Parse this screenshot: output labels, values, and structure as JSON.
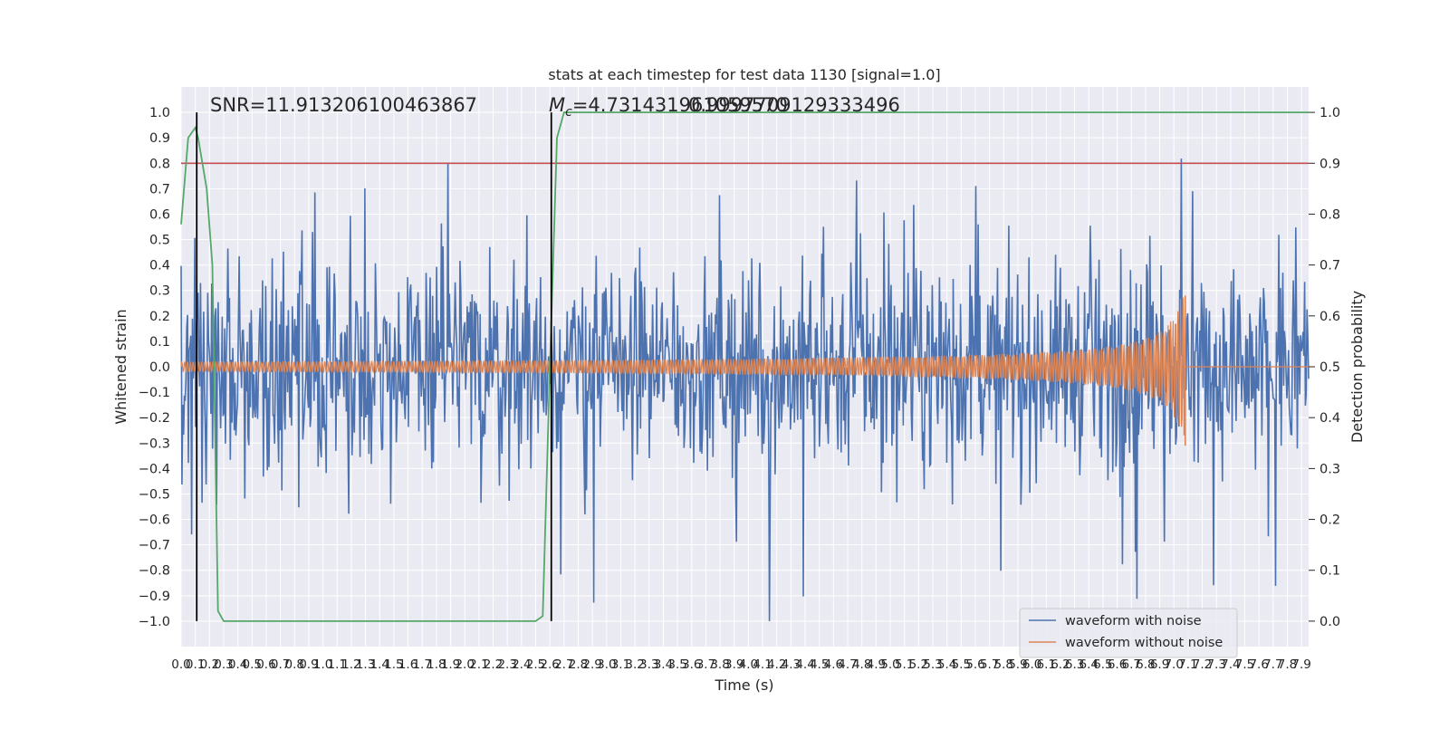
{
  "chart_data": {
    "type": "line",
    "title": "stats at each timestep for test data 1130 [signal=1.0]",
    "xlabel": "Time (s)",
    "ylabel_left": "Whitened strain",
    "ylabel_right": "Detection probability",
    "xlim": [
      0.0,
      7.95
    ],
    "ylim_left": [
      -1.1,
      1.1
    ],
    "ylim_right": [
      -0.05,
      1.05
    ],
    "x_ticks": [
      0.0,
      0.1,
      0.2,
      0.3,
      0.4,
      0.5,
      0.6,
      0.7,
      0.8,
      0.9,
      1.0,
      1.1,
      1.2,
      1.3,
      1.4,
      1.5,
      1.6,
      1.7,
      1.8,
      1.9,
      2.0,
      2.1,
      2.2,
      2.3,
      2.4,
      2.5,
      2.6,
      2.7,
      2.8,
      2.9,
      3.0,
      3.1,
      3.2,
      3.3,
      3.4,
      3.5,
      3.6,
      3.7,
      3.8,
      3.9,
      4.0,
      4.1,
      4.2,
      4.3,
      4.4,
      4.5,
      4.6,
      4.7,
      4.8,
      4.9,
      5.0,
      5.1,
      5.2,
      5.3,
      5.4,
      5.5,
      5.6,
      5.7,
      5.8,
      5.9,
      6.0,
      6.1,
      6.2,
      6.3,
      6.4,
      6.5,
      6.6,
      6.7,
      6.8,
      6.9,
      7.0,
      7.1,
      7.2,
      7.3,
      7.4,
      7.5,
      7.6,
      7.7,
      7.8,
      7.9
    ],
    "y_ticks_left": [
      -1.0,
      -0.9,
      -0.8,
      -0.7,
      -0.6,
      -0.5,
      -0.4,
      -0.3,
      -0.2,
      -0.1,
      0.0,
      0.1,
      0.2,
      0.3,
      0.4,
      0.5,
      0.6,
      0.7,
      0.8,
      0.9,
      1.0
    ],
    "y_ticks_right": [
      0.0,
      0.1,
      0.2,
      0.3,
      0.4,
      0.5,
      0.6,
      0.7,
      0.8,
      0.9,
      1.0
    ],
    "grid": true,
    "legend_position": "lower-right",
    "series": [
      {
        "name": "waveform with noise",
        "color": "#4c72b0",
        "axis": "left",
        "description_values": {
          "amplitude_min": -1.0,
          "amplitude_max": 1.0
        }
      },
      {
        "name": "waveform without noise",
        "color": "#dd8452",
        "axis": "left",
        "chirp": {
          "start": 0.0,
          "merger": 7.08,
          "end": 7.95,
          "amplitude_start": 0.02,
          "amplitude_peak": 0.28,
          "amplitude_min": -0.31
        }
      }
    ],
    "detection_probability": {
      "color": "#55a868",
      "x": [
        0.0,
        0.05,
        0.1,
        0.12,
        0.18,
        0.22,
        0.26,
        0.3,
        2.5,
        2.55,
        2.6,
        2.65,
        2.7,
        7.95
      ],
      "y": [
        0.78,
        0.95,
        0.97,
        0.95,
        0.85,
        0.7,
        0.02,
        0.0,
        0.0,
        0.01,
        0.5,
        0.95,
        1.0,
        1.0
      ]
    },
    "threshold_line": {
      "y": 0.8,
      "color": "#c44e52"
    },
    "vertical_lines": [
      0.11,
      2.61
    ],
    "annotations": [
      {
        "text": "SNR=11.913206100463867",
        "x": 0.2,
        "y": 1.01
      },
      {
        "text": "$M_c$=4.731431961059570",
        "label_main": "M",
        "label_sub": "c",
        "value": "=4.731431961059570",
        "x": 2.6,
        "y": 1.01
      },
      {
        "text": "0.9997709129333496",
        "x": 3.6,
        "y": 1.01
      }
    ]
  }
}
